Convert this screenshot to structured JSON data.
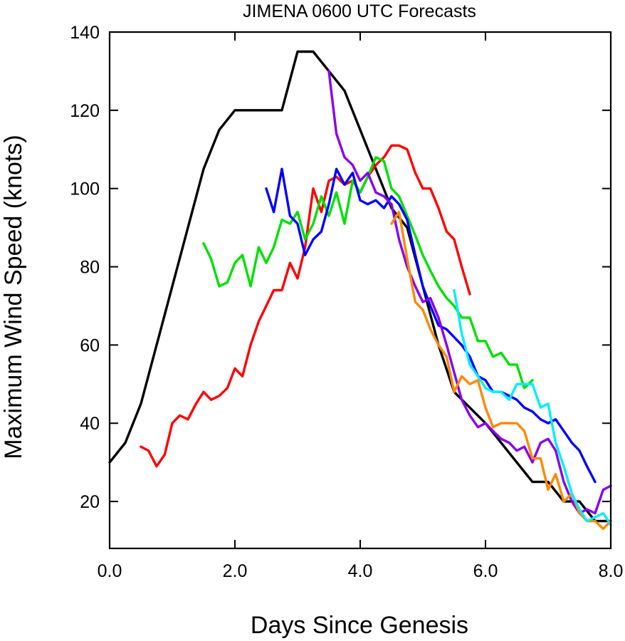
{
  "chart_data": {
    "type": "line",
    "title": "JIMENA 0600 UTC Forecasts",
    "xlabel": "Days Since Genesis",
    "ylabel": "Maximum Wind Speed (knots)",
    "xlim": [
      0,
      8
    ],
    "ylim": [
      8,
      140
    ],
    "xticks": [
      0,
      2,
      4,
      6,
      8
    ],
    "xtick_labels": [
      "0.0",
      "2.0",
      "4.0",
      "6.0",
      "8.0"
    ],
    "yticks": [
      20,
      40,
      60,
      80,
      100,
      120,
      140
    ],
    "ytick_labels": [
      "20",
      "40",
      "60",
      "80",
      "100",
      "120",
      "140"
    ],
    "grid": false,
    "legend": "none",
    "series": [
      {
        "color": "#000000",
        "x": [
          0,
          0.25,
          0.5,
          0.75,
          1.0,
          1.25,
          1.5,
          1.75,
          2.0,
          2.25,
          2.5,
          2.75,
          3.0,
          3.25,
          3.5,
          3.75,
          4.0,
          4.25,
          4.5,
          4.75,
          5.0,
          5.25,
          5.5,
          5.75,
          6.0,
          6.25,
          6.5,
          6.75,
          7.0,
          7.25,
          7.5,
          7.75,
          8.0
        ],
        "y": [
          30,
          35,
          45,
          60,
          75,
          90,
          105,
          115,
          120,
          120,
          120,
          120,
          135,
          135,
          130,
          125,
          115,
          105,
          95,
          90,
          75,
          60,
          48,
          44,
          40,
          35,
          30,
          25,
          25,
          20,
          20,
          15,
          15
        ]
      },
      {
        "color": "#ff0000",
        "x": [
          0.5,
          0.62,
          0.75,
          0.88,
          1.0,
          1.12,
          1.25,
          1.38,
          1.5,
          1.62,
          1.75,
          1.88,
          2.0,
          2.12,
          2.25,
          2.38,
          2.5,
          2.62,
          2.75,
          2.88,
          3.0,
          3.12,
          3.25,
          3.38,
          3.5,
          3.62,
          3.75,
          3.88,
          4.0,
          4.12,
          4.25,
          4.38,
          4.5,
          4.62,
          4.75,
          4.88,
          5.0,
          5.12,
          5.25,
          5.38,
          5.5,
          5.62,
          5.75
        ],
        "y": [
          34,
          33,
          29,
          32,
          40,
          42,
          41,
          45,
          48,
          46,
          47,
          49,
          54,
          52,
          60,
          66,
          70,
          74,
          74,
          81,
          77,
          85,
          100,
          94,
          102,
          103,
          101,
          102,
          99,
          103,
          106,
          108,
          111,
          111,
          110,
          104,
          100,
          100,
          95,
          89,
          87,
          80,
          73
        ]
      },
      {
        "color": "#00e000",
        "x": [
          1.5,
          1.62,
          1.75,
          1.88,
          2.0,
          2.12,
          2.25,
          2.38,
          2.5,
          2.62,
          2.75,
          2.88,
          3.0,
          3.12,
          3.25,
          3.38,
          3.5,
          3.62,
          3.75,
          3.88,
          4.0,
          4.12,
          4.25,
          4.38,
          4.5,
          4.62,
          4.75,
          4.88,
          5.0,
          5.12,
          5.25,
          5.38,
          5.5,
          5.62,
          5.75,
          5.88,
          6.0,
          6.12,
          6.25,
          6.38,
          6.5,
          6.62,
          6.75
        ],
        "y": [
          86,
          82,
          75,
          76,
          81,
          83,
          75,
          85,
          81,
          85,
          92,
          91,
          94,
          87,
          91,
          98,
          93,
          99,
          91,
          102,
          99,
          103,
          108,
          107,
          100,
          98,
          93,
          88,
          83,
          79,
          75,
          72,
          70,
          67,
          67,
          61,
          61,
          57,
          58,
          55,
          55,
          49,
          51
        ]
      },
      {
        "color": "#0000ff",
        "x": [
          2.5,
          2.62,
          2.75,
          2.88,
          3.0,
          3.12,
          3.25,
          3.38,
          3.5,
          3.62,
          3.75,
          3.88,
          4.0,
          4.12,
          4.25,
          4.38,
          4.5,
          4.62,
          4.75,
          4.88,
          5.0,
          5.12,
          5.25,
          5.38,
          5.5,
          5.62,
          5.75,
          5.88,
          6.0,
          6.12,
          6.25,
          6.38,
          6.5,
          6.62,
          6.75,
          6.88,
          7.0,
          7.12,
          7.25,
          7.38,
          7.5,
          7.62,
          7.75
        ],
        "y": [
          100,
          94,
          105,
          93,
          91,
          83,
          87,
          89,
          96,
          105,
          101,
          104,
          97,
          96,
          97,
          95,
          98,
          96,
          92,
          83,
          75,
          70,
          65,
          64,
          62,
          60,
          57,
          52,
          51,
          48,
          48,
          47,
          46,
          44,
          43,
          41,
          40,
          41,
          38,
          35,
          33,
          29,
          25
        ]
      },
      {
        "color": "#8800ee",
        "x": [
          3.5,
          3.62,
          3.75,
          3.88,
          4.0,
          4.12,
          4.25,
          4.38,
          4.5,
          4.62,
          4.75,
          4.88,
          5.0,
          5.12,
          5.25,
          5.38,
          5.5,
          5.62,
          5.75,
          5.88,
          6.0,
          6.12,
          6.25,
          6.38,
          6.5,
          6.62,
          6.75,
          6.88,
          7.0,
          7.12,
          7.25,
          7.38,
          7.5,
          7.62,
          7.75,
          7.88,
          8.0
        ],
        "y": [
          130,
          114,
          108,
          106,
          102,
          104,
          99,
          98,
          96,
          87,
          80,
          75,
          71,
          72,
          67,
          60,
          53,
          46,
          42,
          39,
          40,
          38,
          36,
          35,
          33,
          34,
          30,
          35,
          36,
          33,
          25,
          20,
          17,
          18,
          17,
          23,
          24
        ]
      },
      {
        "color": "#ff8800",
        "x": [
          4.5,
          4.62,
          4.75,
          4.88,
          5.0,
          5.12,
          5.25,
          5.38,
          5.5,
          5.62,
          5.75,
          5.88,
          6.0,
          6.12,
          6.25,
          6.38,
          6.5,
          6.62,
          6.75,
          6.88,
          7.0,
          7.12,
          7.25,
          7.38,
          7.5,
          7.62,
          7.75,
          7.88,
          8.0
        ],
        "y": [
          91,
          94,
          82,
          71,
          69,
          64,
          60,
          57,
          48,
          52,
          50,
          51,
          44,
          39,
          40,
          40,
          40,
          38,
          31,
          31,
          23,
          27,
          20,
          22,
          17,
          15,
          15,
          13,
          15
        ]
      },
      {
        "color": "#00eeff",
        "x": [
          5.5,
          5.62,
          5.75,
          5.88,
          6.0,
          6.12,
          6.25,
          6.38,
          6.5,
          6.62,
          6.75,
          6.88,
          7.0,
          7.12,
          7.25,
          7.38,
          7.5,
          7.62,
          7.75,
          7.88,
          8.0
        ],
        "y": [
          74,
          63,
          55,
          52,
          49,
          48,
          48,
          46,
          50,
          50,
          50,
          44,
          45,
          35,
          29,
          22,
          18,
          15,
          16,
          17,
          14
        ]
      }
    ]
  }
}
